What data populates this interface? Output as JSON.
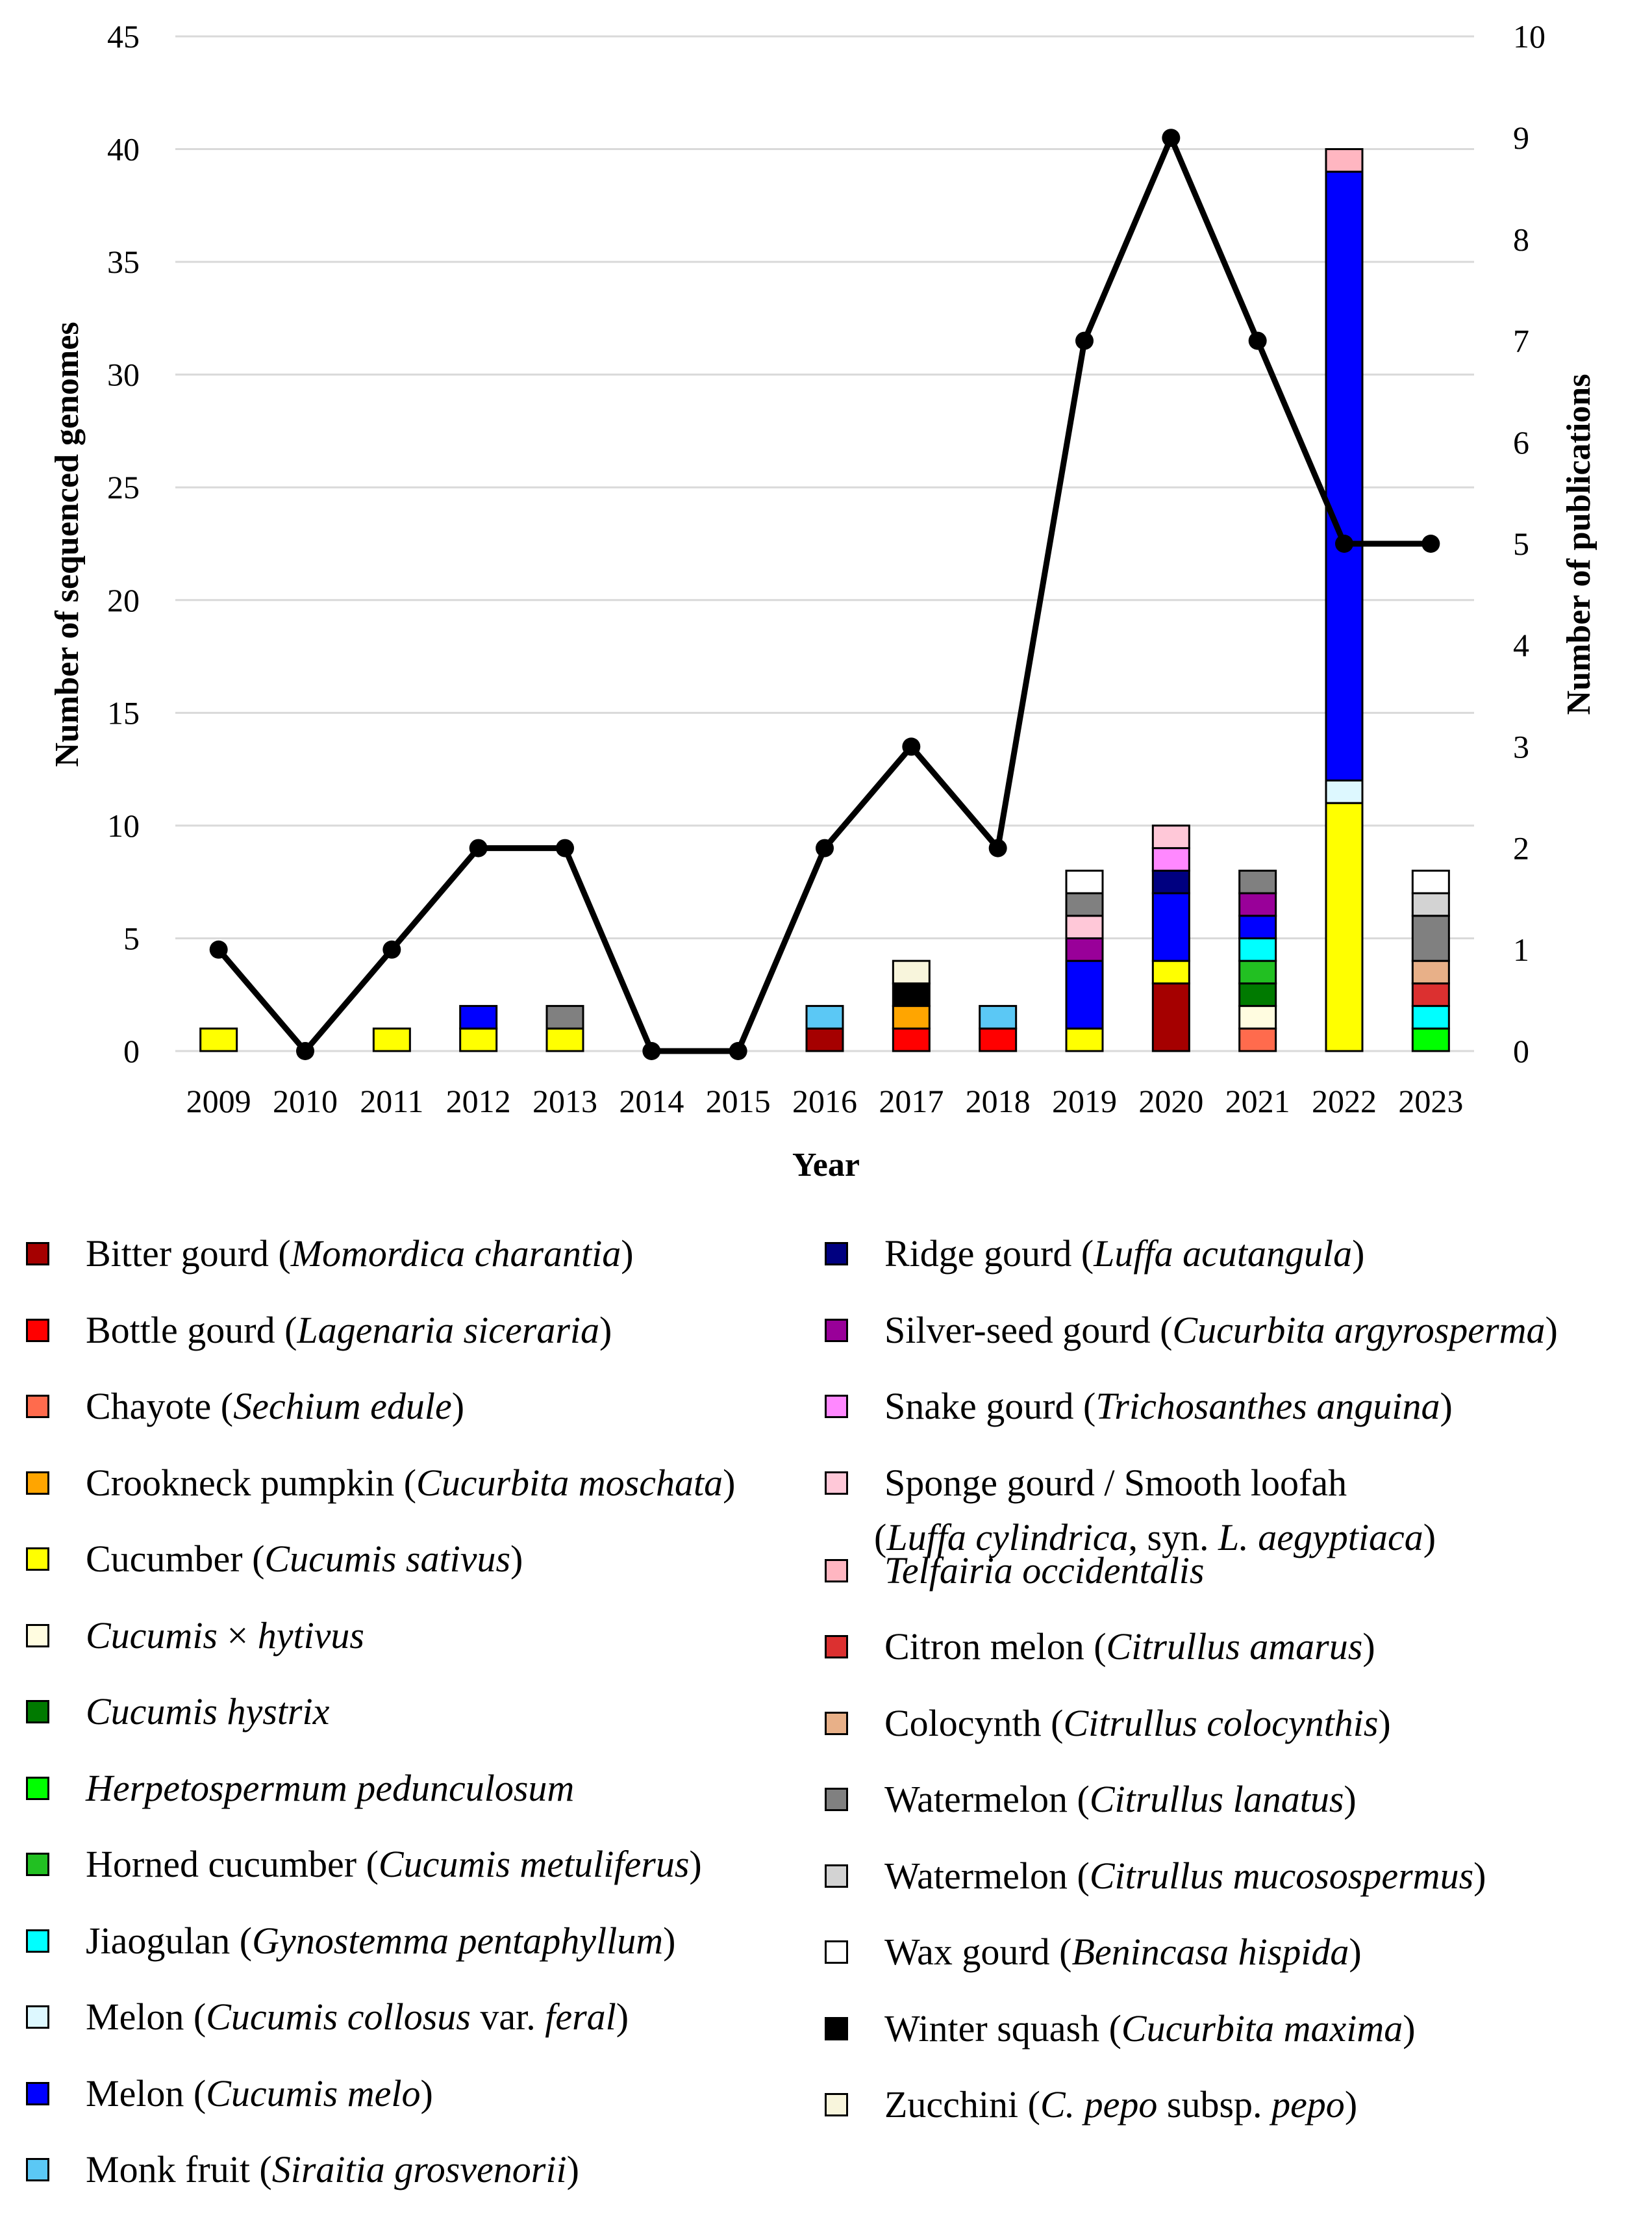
{
  "chart_data": {
    "type": "bar",
    "subtype": "stacked-bar-with-line",
    "categories": [
      "2009",
      "2010",
      "2011",
      "2012",
      "2013",
      "2014",
      "2015",
      "2016",
      "2017",
      "2018",
      "2019",
      "2020",
      "2021",
      "2022",
      "2023"
    ],
    "xlabel": "Year",
    "ylabel": "Number of sequenced genomes",
    "y2label": "Number of publications",
    "ylim": [
      0,
      45
    ],
    "y2lim": [
      0,
      10
    ],
    "yticks": [
      "0",
      "5",
      "10",
      "15",
      "20",
      "25",
      "30",
      "35",
      "40",
      "45"
    ],
    "y2ticks": [
      "0",
      "1",
      "2",
      "3",
      "4",
      "5",
      "6",
      "7",
      "8",
      "9",
      "10"
    ],
    "grid": true,
    "line_series": {
      "name": "Number of publications",
      "axis": "right",
      "values": [
        1,
        0,
        1,
        2,
        2,
        0,
        0,
        2,
        3,
        2,
        7,
        9,
        7,
        5,
        5
      ]
    },
    "stacks": [
      [
        {
          "species": "cucumber",
          "value": 1
        }
      ],
      [],
      [
        {
          "species": "cucumber",
          "value": 1
        }
      ],
      [
        {
          "species": "cucumber",
          "value": 1
        },
        {
          "species": "melon",
          "value": 1
        }
      ],
      [
        {
          "species": "cucumber",
          "value": 1
        },
        {
          "species": "watermelon_lanatus",
          "value": 1
        }
      ],
      [],
      [],
      [
        {
          "species": "bitter_gourd",
          "value": 1
        },
        {
          "species": "monk_fruit",
          "value": 1
        }
      ],
      [
        {
          "species": "bottle_gourd",
          "value": 1
        },
        {
          "species": "crookneck_pumpkin",
          "value": 1
        },
        {
          "species": "winter_squash",
          "value": 1
        },
        {
          "species": "zucchini",
          "value": 1
        }
      ],
      [
        {
          "species": "bottle_gourd",
          "value": 1
        },
        {
          "species": "monk_fruit",
          "value": 1
        }
      ],
      [
        {
          "species": "cucumber",
          "value": 1
        },
        {
          "species": "melon",
          "value": 3
        },
        {
          "species": "silver_seed_gourd",
          "value": 1
        },
        {
          "species": "sponge_gourd",
          "value": 1
        },
        {
          "species": "watermelon_lanatus",
          "value": 1
        },
        {
          "species": "wax_gourd",
          "value": 1
        }
      ],
      [
        {
          "species": "bitter_gourd",
          "value": 3
        },
        {
          "species": "cucumber",
          "value": 1
        },
        {
          "species": "melon",
          "value": 3
        },
        {
          "species": "ridge_gourd",
          "value": 1
        },
        {
          "species": "snake_gourd",
          "value": 1
        },
        {
          "species": "sponge_gourd",
          "value": 1
        }
      ],
      [
        {
          "species": "chayote",
          "value": 1
        },
        {
          "species": "cucumis_hytivus",
          "value": 1
        },
        {
          "species": "cucumis_hystrix",
          "value": 1
        },
        {
          "species": "horned_cucumber",
          "value": 1
        },
        {
          "species": "jiaogulan",
          "value": 1
        },
        {
          "species": "melon",
          "value": 1
        },
        {
          "species": "silver_seed_gourd",
          "value": 1
        },
        {
          "species": "watermelon_lanatus",
          "value": 1
        }
      ],
      [
        {
          "species": "cucumber",
          "value": 11
        },
        {
          "species": "melon_collosus",
          "value": 1
        },
        {
          "species": "melon",
          "value": 27
        },
        {
          "species": "telfairia",
          "value": 1
        }
      ],
      [
        {
          "species": "herpetospermum",
          "value": 1
        },
        {
          "species": "jiaogulan",
          "value": 1
        },
        {
          "species": "citron_melon",
          "value": 1
        },
        {
          "species": "colocynth",
          "value": 1
        },
        {
          "species": "watermelon_lanatus",
          "value": 2
        },
        {
          "species": "watermelon_mucosospermus",
          "value": 1
        },
        {
          "species": "wax_gourd",
          "value": 1
        }
      ]
    ],
    "legend": [
      {
        "id": "bitter_gourd",
        "color": "#A50000",
        "parts": [
          {
            "t": "Bitter gourd ("
          },
          {
            "t": "Momordica charantia",
            "i": true
          },
          {
            "t": ")"
          }
        ]
      },
      {
        "id": "bottle_gourd",
        "color": "#FF0000",
        "parts": [
          {
            "t": "Bottle gourd ("
          },
          {
            "t": "Lagenaria siceraria",
            "i": true
          },
          {
            "t": ")"
          }
        ]
      },
      {
        "id": "chayote",
        "color": "#FF6B4D",
        "parts": [
          {
            "t": "Chayote ("
          },
          {
            "t": "Sechium edule",
            "i": true
          },
          {
            "t": ")"
          }
        ]
      },
      {
        "id": "crookneck_pumpkin",
        "color": "#FFA500",
        "parts": [
          {
            "t": "Crookneck pumpkin ("
          },
          {
            "t": "Cucurbita moschata",
            "i": true
          },
          {
            "t": ")"
          }
        ]
      },
      {
        "id": "cucumber",
        "color": "#FFFF00",
        "parts": [
          {
            "t": "Cucumber ("
          },
          {
            "t": "Cucumis sativus",
            "i": true
          },
          {
            "t": ")"
          }
        ]
      },
      {
        "id": "cucumis_hytivus",
        "color": "#FFFCE0",
        "parts": [
          {
            "t": "Cucumis",
            "i": true
          },
          {
            "t": " × "
          },
          {
            "t": "hytivus",
            "i": true
          }
        ]
      },
      {
        "id": "cucumis_hystrix",
        "color": "#007A00",
        "parts": [
          {
            "t": "Cucumis hystrix",
            "i": true
          }
        ]
      },
      {
        "id": "herpetospermum",
        "color": "#00FF00",
        "parts": [
          {
            "t": "Herpetospermum pedunculosum",
            "i": true
          }
        ]
      },
      {
        "id": "horned_cucumber",
        "color": "#22C022",
        "parts": [
          {
            "t": "Horned cucumber ("
          },
          {
            "t": "Cucumis metuliferus",
            "i": true
          },
          {
            "t": ")"
          }
        ]
      },
      {
        "id": "jiaogulan",
        "color": "#00FFFF",
        "parts": [
          {
            "t": "Jiaogulan ("
          },
          {
            "t": "Gynostemma pentaphyllum",
            "i": true
          },
          {
            "t": ")"
          }
        ]
      },
      {
        "id": "melon_collosus",
        "color": "#DDF8FF",
        "parts": [
          {
            "t": "Melon ("
          },
          {
            "t": "Cucumis collosus",
            "i": true
          },
          {
            "t": " var. "
          },
          {
            "t": "feral",
            "i": true
          },
          {
            "t": ")"
          }
        ]
      },
      {
        "id": "melon",
        "color": "#0000FF",
        "parts": [
          {
            "t": "Melon ("
          },
          {
            "t": "Cucumis melo",
            "i": true
          },
          {
            "t": ")"
          }
        ]
      },
      {
        "id": "monk_fruit",
        "color": "#5BC8F5",
        "parts": [
          {
            "t": "Monk fruit ("
          },
          {
            "t": "Siraitia grosvenorii",
            "i": true
          },
          {
            "t": ")"
          }
        ]
      },
      {
        "id": "ridge_gourd",
        "color": "#000080",
        "parts": [
          {
            "t": "Ridge gourd ("
          },
          {
            "t": "Luffa acutangula",
            "i": true
          },
          {
            "t": ")"
          }
        ]
      },
      {
        "id": "silver_seed_gourd",
        "color": "#990099",
        "parts": [
          {
            "t": "Silver-seed gourd ("
          },
          {
            "t": "Cucurbita argyrosperma",
            "i": true
          },
          {
            "t": ")"
          }
        ]
      },
      {
        "id": "snake_gourd",
        "color": "#FF88FF",
        "parts": [
          {
            "t": "Snake gourd ("
          },
          {
            "t": "Trichosanthes anguina",
            "i": true
          },
          {
            "t": ")"
          }
        ]
      },
      {
        "id": "sponge_gourd",
        "color": "#FFC8D8",
        "lines": [
          [
            {
              "t": "Sponge gourd / Smooth loofah"
            }
          ],
          [
            {
              "t": "("
            },
            {
              "t": "Luffa cylindrica",
              "i": true
            },
            {
              "t": ", syn. "
            },
            {
              "t": "L. aegyptiaca",
              "i": true
            },
            {
              "t": ")"
            }
          ]
        ]
      },
      {
        "id": "telfairia",
        "color": "#FFB6C1",
        "parts": [
          {
            "t": "Telfairia occidentalis",
            "i": true
          }
        ]
      },
      {
        "id": "citron_melon",
        "color": "#DC3030",
        "parts": [
          {
            "t": "Citron melon ("
          },
          {
            "t": "Citrullus amarus",
            "i": true
          },
          {
            "t": ")"
          }
        ]
      },
      {
        "id": "colocynth",
        "color": "#E8B088",
        "parts": [
          {
            "t": "Colocynth ("
          },
          {
            "t": "Citrullus colocynthis",
            "i": true
          },
          {
            "t": ")"
          }
        ]
      },
      {
        "id": "watermelon_lanatus",
        "color": "#808080",
        "parts": [
          {
            "t": "Watermelon ("
          },
          {
            "t": "Citrullus lanatus",
            "i": true
          },
          {
            "t": ")"
          }
        ]
      },
      {
        "id": "watermelon_mucosospermus",
        "color": "#D3D3D3",
        "parts": [
          {
            "t": "Watermelon ("
          },
          {
            "t": "Citrullus mucosospermus",
            "i": true
          },
          {
            "t": ")"
          }
        ]
      },
      {
        "id": "wax_gourd",
        "color": "#FFFFFF",
        "parts": [
          {
            "t": "Wax gourd ("
          },
          {
            "t": "Benincasa hispida",
            "i": true
          },
          {
            "t": ")"
          }
        ]
      },
      {
        "id": "winter_squash",
        "color": "#000000",
        "parts": [
          {
            "t": "Winter squash ("
          },
          {
            "t": "Cucurbita maxima",
            "i": true
          },
          {
            "t": ")"
          }
        ]
      },
      {
        "id": "zucchini",
        "color": "#F8F5DC",
        "parts": [
          {
            "t": "Zucchini ("
          },
          {
            "t": "C. pepo",
            "i": true
          },
          {
            "t": " subsp. "
          },
          {
            "t": "pepo",
            "i": true
          },
          {
            "t": ")"
          }
        ]
      }
    ]
  }
}
